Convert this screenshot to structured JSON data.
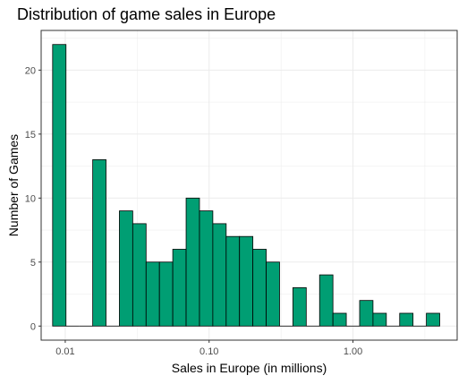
{
  "chart_data": {
    "type": "bar",
    "title": "Distribution of game sales in Europe",
    "xlabel": "Sales in Europe (in millions)",
    "ylabel": "Number of Games",
    "x_scale": "log10",
    "xlim": [
      0.0068,
      5.3
    ],
    "ylim": [
      -1.1,
      23.1
    ],
    "x_ticks": [
      {
        "value": 0.01,
        "label": "0.01"
      },
      {
        "value": 0.1,
        "label": "0.10"
      },
      {
        "value": 1.0,
        "label": "1.00"
      }
    ],
    "y_ticks": [
      {
        "value": 0,
        "label": "0"
      },
      {
        "value": 5,
        "label": "5"
      },
      {
        "value": 10,
        "label": "10"
      },
      {
        "value": 15,
        "label": "15"
      },
      {
        "value": 20,
        "label": "20"
      }
    ],
    "bin_edges": [
      0.00817,
      0.01012,
      0.01253,
      0.01552,
      0.01921,
      0.02379,
      0.02945,
      0.03647,
      0.04515,
      0.05591,
      0.06922,
      0.08571,
      0.10612,
      0.1314,
      0.1627,
      0.20144,
      0.24942,
      0.30882,
      0.38237,
      0.47344,
      0.5862,
      0.7258,
      0.89866,
      1.11268,
      1.37768,
      1.70579,
      2.11206,
      2.61508,
      3.23789,
      4.00908
    ],
    "counts": [
      22,
      0,
      0,
      13,
      0,
      9,
      8,
      5,
      5,
      6,
      10,
      9,
      8,
      7,
      7,
      6,
      5,
      0,
      3,
      0,
      4,
      1,
      0,
      2,
      1,
      0,
      1,
      0,
      1
    ],
    "bar_fill": "#009E73",
    "bar_stroke": "#000000",
    "grid": true,
    "grid_color": "#ebebeb",
    "panel_border_color": "#333333"
  }
}
